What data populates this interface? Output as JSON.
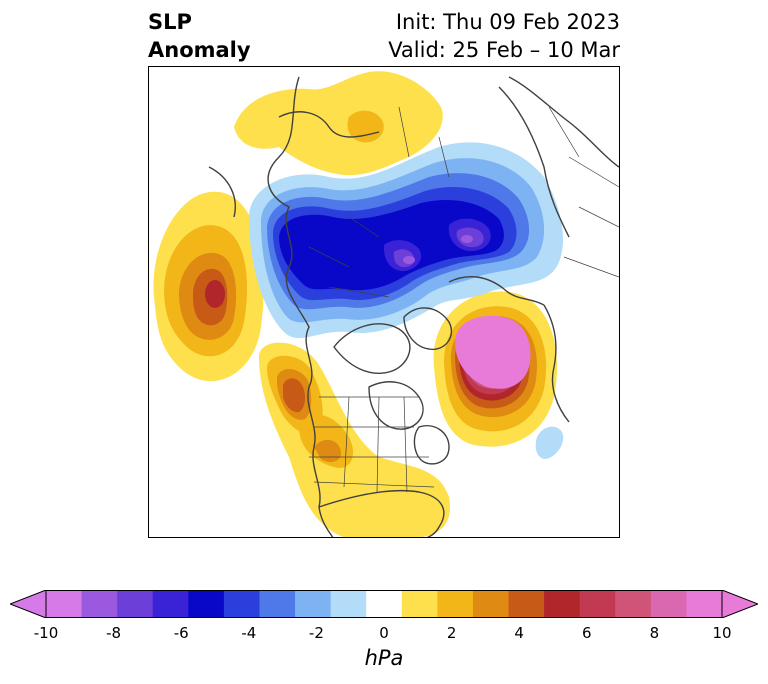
{
  "title": {
    "left_line1": "SLP",
    "left_line2": "Anomaly",
    "init": "Init: Thu 09 Feb 2023",
    "valid": "Valid: 25 Feb – 10 Mar"
  },
  "colorbar": {
    "label": "hPa",
    "ticks": [
      "-10",
      "-8",
      "-6",
      "-4",
      "-2",
      "0",
      "2",
      "4",
      "6",
      "8",
      "10"
    ],
    "colors": [
      "#d57ae6",
      "#9b59e0",
      "#6b3fd8",
      "#3a22d6",
      "#0a08c8",
      "#2a3fdc",
      "#4f79e8",
      "#7db3f2",
      "#b2dcf8",
      "#ffffff",
      "#fde04c",
      "#f2b618",
      "#df8a12",
      "#c85a18",
      "#b0262a",
      "#c23a52",
      "#cf5478",
      "#d968b0",
      "#e87ad8"
    ]
  },
  "anomalies": [
    {
      "name": "negative-low-center",
      "value_hpa": -10
    },
    {
      "name": "positive-high-center",
      "value_hpa": 10
    }
  ]
}
